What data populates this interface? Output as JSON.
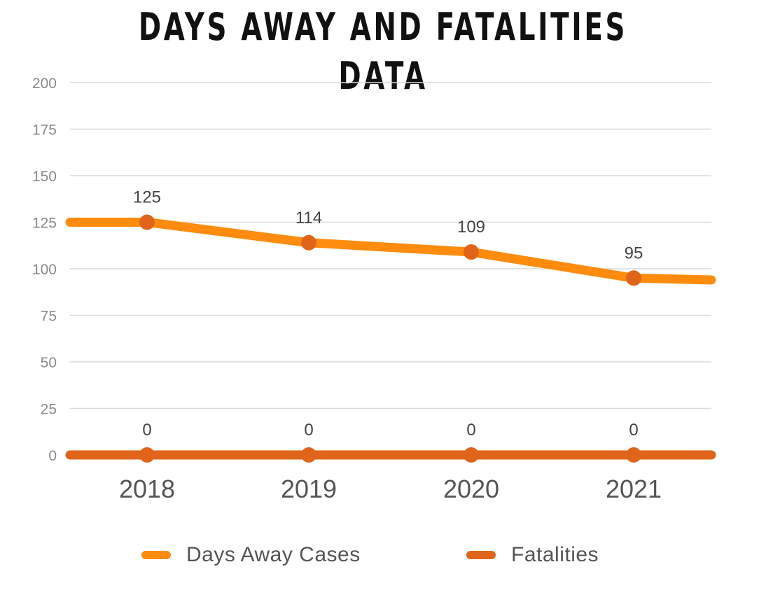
{
  "chart_data": {
    "type": "line",
    "title": "DAYS AWAY AND FATALITIES DATA",
    "xlabel": "",
    "ylabel": "",
    "categories": [
      "2018",
      "2019",
      "2020",
      "2021"
    ],
    "ylim": [
      0,
      200
    ],
    "yticks": [
      "0",
      "25",
      "50",
      "75",
      "100",
      "125",
      "150",
      "175",
      "200"
    ],
    "grid": true,
    "legend_position": "bottom",
    "series": [
      {
        "name": "Days Away Cases",
        "values": [
          125,
          114,
          109,
          95
        ],
        "data_labels": [
          "125",
          "114",
          "109",
          "95"
        ],
        "color": "#FF8C0F"
      },
      {
        "name": "Fatalities",
        "values": [
          0,
          0,
          0,
          0
        ],
        "data_labels": [
          "0",
          "0",
          "0",
          "0"
        ],
        "color": "#E0641A"
      }
    ],
    "marker_color": "#E0641A"
  }
}
